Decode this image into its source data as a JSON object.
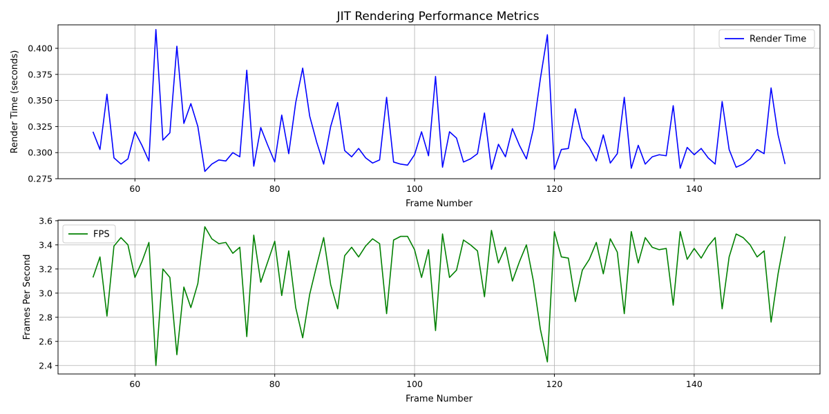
{
  "figure": {
    "title": "JIT Rendering Performance Metrics"
  },
  "chart_data": [
    {
      "type": "line",
      "title": "JIT Rendering Performance Metrics",
      "xlabel": "Frame Number",
      "ylabel": "Render Time (seconds)",
      "xlim": [
        49,
        158
      ],
      "ylim": [
        0.275,
        0.4225
      ],
      "xticks": [
        60,
        80,
        100,
        120,
        140
      ],
      "yticks": [
        0.275,
        0.3,
        0.325,
        0.35,
        0.375,
        0.4
      ],
      "ytick_labels": [
        "0.275",
        "0.300",
        "0.325",
        "0.350",
        "0.375",
        "0.400"
      ],
      "grid": true,
      "legend_position": "top-right",
      "color": "#0000ff",
      "x": [
        54,
        55,
        56,
        57,
        58,
        59,
        60,
        61,
        62,
        63,
        64,
        65,
        66,
        67,
        68,
        69,
        70,
        71,
        72,
        73,
        74,
        75,
        76,
        77,
        78,
        79,
        80,
        81,
        82,
        83,
        84,
        85,
        86,
        87,
        88,
        89,
        90,
        91,
        92,
        93,
        94,
        95,
        96,
        97,
        98,
        99,
        100,
        101,
        102,
        103,
        104,
        105,
        106,
        107,
        108,
        109,
        110,
        111,
        112,
        113,
        114,
        115,
        116,
        117,
        118,
        119,
        120,
        121,
        122,
        123,
        124,
        125,
        126,
        127,
        128,
        129,
        130,
        131,
        132,
        133,
        134,
        135,
        136,
        137,
        138,
        139,
        140,
        141,
        142,
        143,
        144,
        145,
        146,
        147,
        148,
        149,
        150,
        151,
        152,
        153
      ],
      "series": [
        {
          "name": "Render Time",
          "values": [
            0.32,
            0.303,
            0.356,
            0.295,
            0.289,
            0.294,
            0.32,
            0.307,
            0.292,
            0.418,
            0.312,
            0.319,
            0.402,
            0.328,
            0.347,
            0.325,
            0.282,
            0.289,
            0.293,
            0.292,
            0.3,
            0.296,
            0.379,
            0.287,
            0.324,
            0.307,
            0.291,
            0.336,
            0.299,
            0.348,
            0.381,
            0.335,
            0.31,
            0.289,
            0.325,
            0.348,
            0.302,
            0.296,
            0.304,
            0.295,
            0.29,
            0.293,
            0.353,
            0.291,
            0.289,
            0.288,
            0.298,
            0.32,
            0.297,
            0.373,
            0.286,
            0.32,
            0.314,
            0.291,
            0.294,
            0.299,
            0.338,
            0.284,
            0.308,
            0.296,
            0.323,
            0.307,
            0.294,
            0.323,
            0.371,
            0.413,
            0.284,
            0.303,
            0.304,
            0.342,
            0.314,
            0.305,
            0.292,
            0.317,
            0.29,
            0.299,
            0.353,
            0.285,
            0.307,
            0.289,
            0.296,
            0.298,
            0.297,
            0.345,
            0.285,
            0.305,
            0.298,
            0.304,
            0.295,
            0.289,
            0.349,
            0.303,
            0.286,
            0.289,
            0.294,
            0.303,
            0.299,
            0.362,
            0.317,
            0.289
          ]
        }
      ]
    },
    {
      "type": "line",
      "xlabel": "Frame Number",
      "ylabel": "Frames Per Second",
      "xlim": [
        49,
        158
      ],
      "ylim": [
        2.33,
        3.605
      ],
      "xticks": [
        60,
        80,
        100,
        120,
        140
      ],
      "yticks": [
        2.4,
        2.6,
        2.8,
        3.0,
        3.2,
        3.4,
        3.6
      ],
      "ytick_labels": [
        "2.4",
        "2.6",
        "2.8",
        "3.0",
        "3.2",
        "3.4",
        "3.6"
      ],
      "grid": true,
      "legend_position": "top-left",
      "color": "#008000",
      "x": [
        54,
        55,
        56,
        57,
        58,
        59,
        60,
        61,
        62,
        63,
        64,
        65,
        66,
        67,
        68,
        69,
        70,
        71,
        72,
        73,
        74,
        75,
        76,
        77,
        78,
        79,
        80,
        81,
        82,
        83,
        84,
        85,
        86,
        87,
        88,
        89,
        90,
        91,
        92,
        93,
        94,
        95,
        96,
        97,
        98,
        99,
        100,
        101,
        102,
        103,
        104,
        105,
        106,
        107,
        108,
        109,
        110,
        111,
        112,
        113,
        114,
        115,
        116,
        117,
        118,
        119,
        120,
        121,
        122,
        123,
        124,
        125,
        126,
        127,
        128,
        129,
        130,
        131,
        132,
        133,
        134,
        135,
        136,
        137,
        138,
        139,
        140,
        141,
        142,
        143,
        144,
        145,
        146,
        147,
        148,
        149,
        150,
        151,
        152,
        153
      ],
      "series": [
        {
          "name": "FPS",
          "values": [
            3.13,
            3.3,
            2.81,
            3.39,
            3.46,
            3.4,
            3.13,
            3.26,
            3.42,
            2.4,
            3.2,
            3.13,
            2.49,
            3.05,
            2.88,
            3.08,
            3.55,
            3.45,
            3.41,
            3.42,
            3.33,
            3.38,
            2.64,
            3.48,
            3.09,
            3.26,
            3.43,
            2.98,
            3.35,
            2.88,
            2.63,
            2.99,
            3.23,
            3.46,
            3.07,
            2.87,
            3.31,
            3.38,
            3.3,
            3.39,
            3.45,
            3.41,
            2.83,
            3.44,
            3.47,
            3.47,
            3.36,
            3.13,
            3.36,
            2.69,
            3.49,
            3.13,
            3.19,
            3.44,
            3.4,
            3.35,
            2.97,
            3.52,
            3.25,
            3.38,
            3.1,
            3.26,
            3.4,
            3.1,
            2.7,
            2.43,
            3.51,
            3.3,
            3.29,
            2.93,
            3.19,
            3.28,
            3.42,
            3.16,
            3.45,
            3.34,
            2.83,
            3.51,
            3.25,
            3.46,
            3.38,
            3.36,
            3.37,
            2.9,
            3.51,
            3.28,
            3.37,
            3.29,
            3.39,
            3.46,
            2.87,
            3.3,
            3.49,
            3.46,
            3.4,
            3.3,
            3.35,
            2.76,
            3.16,
            3.47
          ]
        }
      ]
    }
  ]
}
